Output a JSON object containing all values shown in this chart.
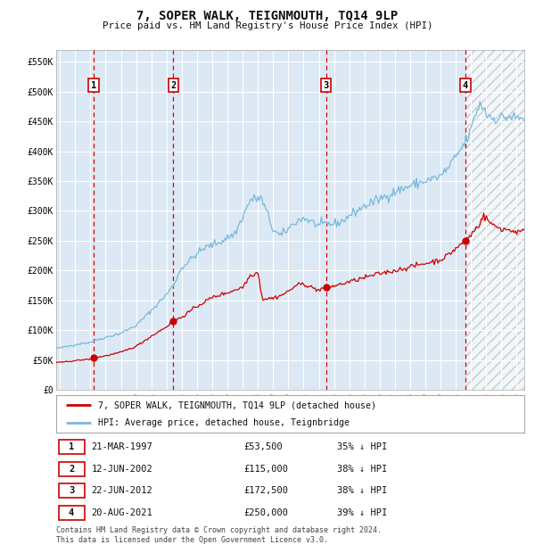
{
  "title": "7, SOPER WALK, TEIGNMOUTH, TQ14 9LP",
  "subtitle": "Price paid vs. HM Land Registry's House Price Index (HPI)",
  "ylim": [
    0,
    570000
  ],
  "xlim_start": 1994.75,
  "xlim_end": 2025.5,
  "yticks": [
    0,
    50000,
    100000,
    150000,
    200000,
    250000,
    300000,
    350000,
    400000,
    450000,
    500000,
    550000
  ],
  "ytick_labels": [
    "£0",
    "£50K",
    "£100K",
    "£150K",
    "£200K",
    "£250K",
    "£300K",
    "£350K",
    "£400K",
    "£450K",
    "£500K",
    "£550K"
  ],
  "xticks": [
    1995,
    1996,
    1997,
    1998,
    1999,
    2000,
    2001,
    2002,
    2003,
    2004,
    2005,
    2006,
    2007,
    2008,
    2009,
    2010,
    2011,
    2012,
    2013,
    2014,
    2015,
    2016,
    2017,
    2018,
    2019,
    2020,
    2021,
    2022,
    2023,
    2024,
    2025
  ],
  "hpi_color": "#7ab8d8",
  "price_color": "#cc0000",
  "bg_color": "#dce9f5",
  "grid_color": "#ffffff",
  "vline_color": "#dd0000",
  "transactions": [
    {
      "num": 1,
      "date_num": 1997.22,
      "price": 53500
    },
    {
      "num": 2,
      "date_num": 2002.44,
      "price": 115000
    },
    {
      "num": 3,
      "date_num": 2012.47,
      "price": 172500
    },
    {
      "num": 4,
      "date_num": 2021.64,
      "price": 250000
    }
  ],
  "legend_label_price": "7, SOPER WALK, TEIGNMOUTH, TQ14 9LP (detached house)",
  "legend_label_hpi": "HPI: Average price, detached house, Teignbridge",
  "footer": "Contains HM Land Registry data © Crown copyright and database right 2024.\nThis data is licensed under the Open Government Licence v3.0.",
  "table_rows": [
    [
      "1",
      "21-MAR-1997",
      "£53,500",
      "35% ↓ HPI"
    ],
    [
      "2",
      "12-JUN-2002",
      "£115,000",
      "38% ↓ HPI"
    ],
    [
      "3",
      "22-JUN-2012",
      "£172,500",
      "38% ↓ HPI"
    ],
    [
      "4",
      "20-AUG-2021",
      "£250,000",
      "39% ↓ HPI"
    ]
  ],
  "hpi_anchors": {
    "1995.0": 70000,
    "1996.0": 76000,
    "1997.0": 80000,
    "1997.22": 82000,
    "1998.0": 88000,
    "1999.0": 95000,
    "2000.0": 108000,
    "2001.0": 133000,
    "2002.0": 160000,
    "2002.44": 175000,
    "2003.0": 205000,
    "2004.0": 228000,
    "2004.5": 238000,
    "2005.5": 248000,
    "2006.5": 262000,
    "2007.0": 290000,
    "2007.5": 318000,
    "2008.2": 322000,
    "2008.7": 290000,
    "2009.0": 268000,
    "2009.5": 258000,
    "2010.0": 270000,
    "2010.5": 282000,
    "2011.0": 288000,
    "2011.5": 282000,
    "2012.0": 275000,
    "2012.47": 278000,
    "2013.0": 278000,
    "2013.5": 282000,
    "2014.0": 292000,
    "2015.0": 308000,
    "2016.0": 320000,
    "2017.0": 332000,
    "2018.0": 342000,
    "2019.0": 350000,
    "2020.0": 358000,
    "2020.5": 372000,
    "2021.0": 390000,
    "2021.64": 415000,
    "2022.0": 435000,
    "2022.3": 465000,
    "2022.6": 478000,
    "2022.9": 472000,
    "2023.0": 462000,
    "2023.5": 455000,
    "2024.0": 456000,
    "2024.5": 458000,
    "2025.0": 455000
  },
  "price_anchors": {
    "1995.0": 46000,
    "1996.0": 49000,
    "1997.0": 51500,
    "1997.22": 53500,
    "1998.0": 57000,
    "1999.0": 63000,
    "2000.0": 73000,
    "2001.0": 90000,
    "2002.0": 106000,
    "2002.44": 115000,
    "2003.0": 122000,
    "2004.0": 140000,
    "2005.0": 155000,
    "2006.0": 163000,
    "2007.0": 172000,
    "2007.5": 192000,
    "2008.0": 197000,
    "2008.3": 152000,
    "2009.0": 154000,
    "2009.5": 158000,
    "2010.0": 165000,
    "2010.5": 175000,
    "2011.0": 178000,
    "2011.5": 172000,
    "2012.0": 167000,
    "2012.47": 172500,
    "2013.0": 174000,
    "2014.0": 181000,
    "2015.0": 188000,
    "2016.0": 195000,
    "2017.0": 200000,
    "2018.0": 206000,
    "2019.0": 212000,
    "2020.0": 218000,
    "2020.5": 226000,
    "2021.0": 237000,
    "2021.64": 250000,
    "2022.0": 260000,
    "2022.5": 276000,
    "2022.8": 292000,
    "2023.0": 287000,
    "2023.5": 275000,
    "2024.0": 270000,
    "2024.5": 268000,
    "2025.0": 265000
  }
}
